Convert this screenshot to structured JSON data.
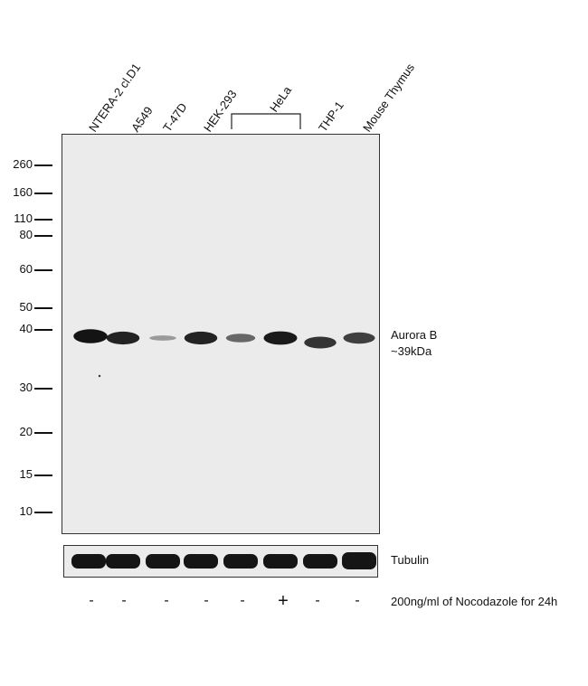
{
  "lanes": [
    {
      "label": "NTERA-2 cl.D1",
      "treatment": "-",
      "band": 0.95,
      "tubulin": 0.95
    },
    {
      "label": "A549",
      "treatment": "-",
      "band": 0.85,
      "tubulin": 0.95
    },
    {
      "label": "T-47D",
      "treatment": "-",
      "band": 0.15,
      "tubulin": 0.95
    },
    {
      "label": "HEK-293",
      "treatment": "-",
      "band": 0.85,
      "tubulin": 0.95
    },
    {
      "label": "",
      "treatment": "-",
      "band": 0.45,
      "tubulin": 0.95
    },
    {
      "label": "",
      "treatment": "+",
      "band": 0.9,
      "tubulin": 0.95
    },
    {
      "label": "THP-1",
      "treatment": "-",
      "band": 0.75,
      "tubulin": 0.95
    },
    {
      "label": "Mouse Thymus",
      "treatment": "-",
      "band": 0.7,
      "tubulin": 0.95
    }
  ],
  "hela_group_label": "HeLa",
  "markers": [
    "260",
    "160",
    "110",
    "80",
    "60",
    "50",
    "40",
    "30",
    "20",
    "15",
    "10"
  ],
  "band_label": {
    "line1": "Aurora B",
    "line2": "~39kDa"
  },
  "loading_label": "Tubulin",
  "treatment_label": "200ng/ml of Nocodazole for 24h",
  "colors": {
    "blot_bg": "#ebebeb",
    "band": "#0a0a0a",
    "frame": "#333333"
  }
}
